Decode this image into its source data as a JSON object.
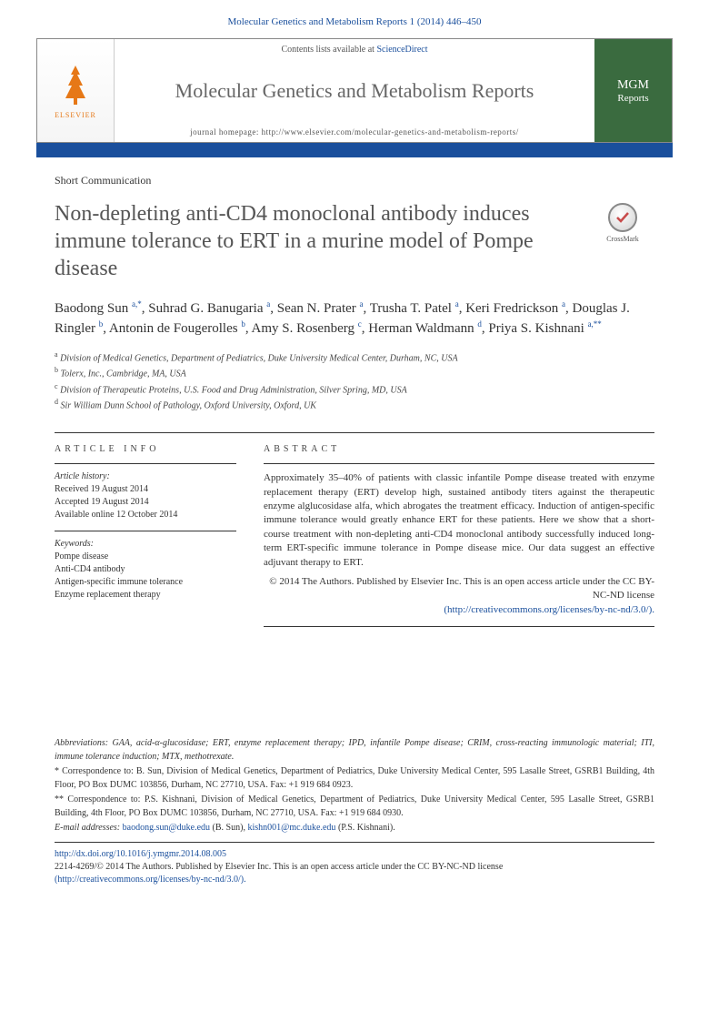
{
  "header": {
    "citation": "Molecular Genetics and Metabolism Reports 1 (2014) 446–450"
  },
  "journalBox": {
    "elsevier": "ELSEVIER",
    "contentsPrefix": "Contents lists available at ",
    "contentsLink": "ScienceDirect",
    "journalTitle": "Molecular Genetics and Metabolism Reports",
    "homepage": "journal homepage: http://www.elsevier.com/molecular-genetics-and-metabolism-reports/",
    "coverLine1": "MGM",
    "coverLine2": "Reports"
  },
  "article": {
    "type": "Short Communication",
    "title": "Non-depleting anti-CD4 monoclonal antibody induces immune tolerance to ERT in a murine model of Pompe disease",
    "crossmark": "CrossMark",
    "authorsHtml": "Baodong Sun <span class='sup'>a,*</span>, Suhrad G. Banugaria <span class='sup'>a</span>, Sean N. Prater <span class='sup'>a</span>, Trusha T. Patel <span class='sup'>a</span>, Keri Fredrickson <span class='sup'>a</span>, Douglas J. Ringler <span class='sup'>b</span>, Antonin de Fougerolles <span class='sup'>b</span>, Amy S. Rosenberg <span class='sup'>c</span>, Herman Waldmann <span class='sup'>d</span>, Priya S. Kishnani <span class='sup'>a,**</span>",
    "affiliations": [
      {
        "sup": "a",
        "text": "Division of Medical Genetics, Department of Pediatrics, Duke University Medical Center, Durham, NC, USA"
      },
      {
        "sup": "b",
        "text": "Tolerx, Inc., Cambridge, MA, USA"
      },
      {
        "sup": "c",
        "text": "Division of Therapeutic Proteins, U.S. Food and Drug Administration, Silver Spring, MD, USA"
      },
      {
        "sup": "d",
        "text": "Sir William Dunn School of Pathology, Oxford University, Oxford, UK"
      }
    ]
  },
  "info": {
    "sectionHead": "ARTICLE INFO",
    "historyLabel": "Article history:",
    "history": [
      "Received 19 August 2014",
      "Accepted 19 August 2014",
      "Available online 12 October 2014"
    ],
    "keywordsLabel": "Keywords:",
    "keywords": [
      "Pompe disease",
      "Anti-CD4 antibody",
      "Antigen-specific immune tolerance",
      "Enzyme replacement therapy"
    ]
  },
  "abstract": {
    "sectionHead": "ABSTRACT",
    "text": "Approximately 35–40% of patients with classic infantile Pompe disease treated with enzyme replacement therapy (ERT) develop high, sustained antibody titers against the therapeutic enzyme alglucosidase alfa, which abrogates the treatment efficacy. Induction of antigen-specific immune tolerance would greatly enhance ERT for these patients. Here we show that a short-course treatment with non-depleting anti-CD4 monoclonal antibody successfully induced long-term ERT-specific immune tolerance in Pompe disease mice. Our data suggest an effective adjuvant therapy to ERT.",
    "copyright": "© 2014 The Authors. Published by Elsevier Inc. This is an open access article under the CC BY-NC-ND license",
    "licenseUrl": "(http://creativecommons.org/licenses/by-nc-nd/3.0/)."
  },
  "footnotes": {
    "abbreviations": "Abbreviations: GAA, acid-α-glucosidase; ERT, enzyme replacement therapy; IPD, infantile Pompe disease; CRIM, cross-reacting immunologic material; ITI, immune tolerance induction; MTX, methotrexate.",
    "corr1": "* Correspondence to: B. Sun, Division of Medical Genetics, Department of Pediatrics, Duke University Medical Center, 595 Lasalle Street, GSRB1 Building, 4th Floor, PO Box DUMC 103856, Durham, NC 27710, USA. Fax: +1 919 684 0923.",
    "corr2": "** Correspondence to: P.S. Kishnani, Division of Medical Genetics, Department of Pediatrics, Duke University Medical Center, 595 Lasalle Street, GSRB1 Building, 4th Floor, PO Box DUMC 103856, Durham, NC 27710, USA. Fax: +1 919 684 0930.",
    "emailLabel": "E-mail addresses: ",
    "email1": "baodong.sun@duke.edu",
    "email1Name": " (B. Sun), ",
    "email2": "kishn001@mc.duke.edu",
    "email2Name": " (P.S. Kishnani)."
  },
  "footer": {
    "doi": "http://dx.doi.org/10.1016/j.ymgmr.2014.08.005",
    "issn": "2214-4269/© 2014 The Authors. Published by Elsevier Inc. This is an open access article under the CC BY-NC-ND license",
    "licenseUrl": "(http://creativecommons.org/licenses/by-nc-nd/3.0/)."
  }
}
